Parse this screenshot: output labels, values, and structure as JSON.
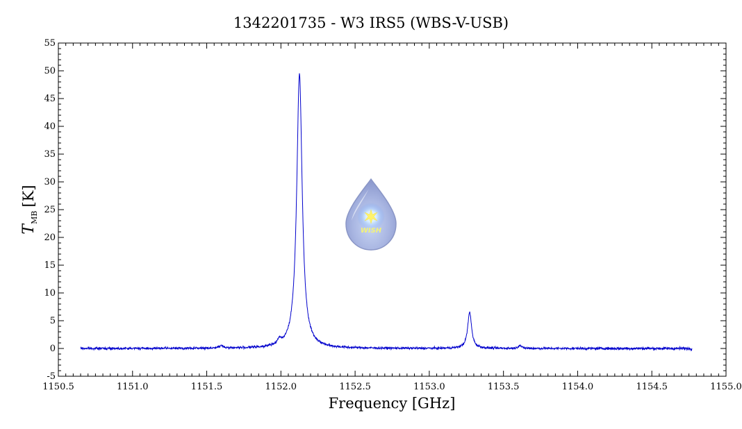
{
  "chart_data": {
    "type": "line",
    "title": "1342201735 - W3 IRS5 (WBS-V-USB)",
    "xlabel": "Frequency [GHz]",
    "ylabel_main": "T",
    "ylabel_sub": "MB",
    "ylabel_unit": "[K]",
    "xlim": [
      1150.5,
      1155.0
    ],
    "ylim": [
      -5,
      55
    ],
    "x_ticks": [
      "1150.5",
      "1151.0",
      "1151.5",
      "1152.0",
      "1152.5",
      "1153.0",
      "1153.5",
      "1154.0",
      "1154.5",
      "1155.0"
    ],
    "x_tick_values": [
      1150.5,
      1151.0,
      1151.5,
      1152.0,
      1152.5,
      1153.0,
      1153.5,
      1154.0,
      1154.5,
      1155.0
    ],
    "y_ticks": [
      "-5",
      "0",
      "5",
      "10",
      "15",
      "20",
      "25",
      "30",
      "35",
      "40",
      "45",
      "50",
      "55"
    ],
    "y_tick_values": [
      -5,
      0,
      5,
      10,
      15,
      20,
      25,
      30,
      35,
      40,
      45,
      50,
      55
    ],
    "grid": false,
    "series": [
      {
        "color": "#0000cc",
        "x_range": [
          1150.65,
          1154.77
        ],
        "baseline": 0,
        "noise_rms": 0.15,
        "lines": [
          {
            "center": 1152.125,
            "peak": 49.5,
            "width": 0.022
          },
          {
            "center": 1153.272,
            "peak": 6.5,
            "width": 0.016
          },
          {
            "center": 1151.6,
            "peak": 0.4,
            "width": 0.02
          },
          {
            "center": 1151.99,
            "peak": 0.8,
            "width": 0.015
          },
          {
            "center": 1153.61,
            "peak": 0.6,
            "width": 0.012
          }
        ]
      }
    ]
  },
  "logo": {
    "text": "WISH",
    "color_top": "#d6dcf0",
    "color_bottom": "#9aa7d8"
  }
}
